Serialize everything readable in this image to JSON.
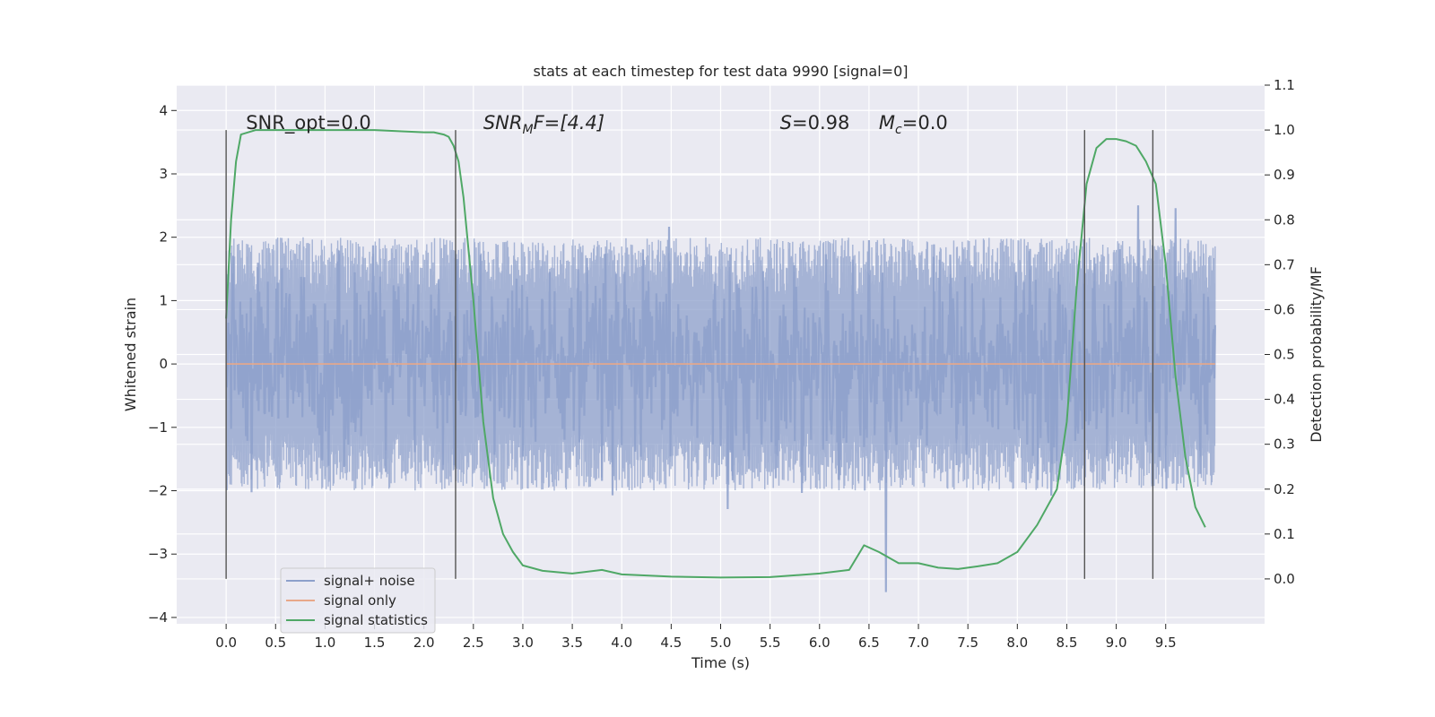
{
  "chart_data": {
    "type": "line",
    "title": "stats at each timestep for test data 9990 [signal=0]",
    "xlabel": "Time (s)",
    "ylabel": "Whitened strain",
    "y2label": "Detection probability/MF",
    "xlim": [
      -0.5,
      10.5
    ],
    "ylim": [
      -4.1,
      4.4
    ],
    "y2lim": [
      -0.1,
      1.1
    ],
    "x_ticks": [
      "0.0",
      "0.5",
      "1.0",
      "1.5",
      "2.0",
      "2.5",
      "3.0",
      "3.5",
      "4.0",
      "4.5",
      "5.0",
      "5.5",
      "6.0",
      "6.5",
      "7.0",
      "7.5",
      "8.0",
      "8.5",
      "9.0",
      "9.5"
    ],
    "y_ticks": [
      "−4",
      "−3",
      "−2",
      "−1",
      "0",
      "1",
      "2",
      "3",
      "4"
    ],
    "y2_ticks": [
      "0.0",
      "0.1",
      "0.2",
      "0.3",
      "0.4",
      "0.5",
      "0.6",
      "0.7",
      "0.8",
      "0.9",
      "1.0",
      "1.1"
    ],
    "grid": true,
    "legend_position": "lower-left",
    "annotations": {
      "snr_opt": "SNR_opt=0.0",
      "snr_mf_main": "SNR",
      "snr_mf_sub": "M",
      "snr_mf_rest": "F=[4.4]",
      "s_letter": "S",
      "s_rest": "=0.98",
      "mc_letter": "M",
      "mc_sub": "c",
      "mc_rest": "=0.0"
    },
    "vertical_markers": [
      0.0,
      2.32,
      8.68,
      9.37
    ],
    "series": [
      {
        "name": "signal+ noise",
        "color": "#8da0cb",
        "noise_std": 0.6,
        "x_range": [
          0.0,
          10.0
        ]
      },
      {
        "name": "signal only",
        "color": "#e8a889",
        "x": [
          0.0,
          10.0
        ],
        "y": [
          0.0,
          0.0
        ]
      },
      {
        "name": "signal statistics",
        "color": "#4fa866",
        "axis": "right",
        "x": [
          0.0,
          0.05,
          0.1,
          0.15,
          0.3,
          0.5,
          1.0,
          1.5,
          2.0,
          2.1,
          2.2,
          2.25,
          2.3,
          2.35,
          2.4,
          2.5,
          2.6,
          2.7,
          2.8,
          2.9,
          3.0,
          3.2,
          3.5,
          3.8,
          4.0,
          4.5,
          5.0,
          5.5,
          6.0,
          6.3,
          6.45,
          6.6,
          6.8,
          7.0,
          7.2,
          7.4,
          7.6,
          7.8,
          8.0,
          8.2,
          8.4,
          8.5,
          8.6,
          8.7,
          8.8,
          8.9,
          9.0,
          9.1,
          9.2,
          9.3,
          9.4,
          9.5,
          9.6,
          9.7,
          9.8,
          9.9
        ],
        "y": [
          0.58,
          0.8,
          0.93,
          0.99,
          1.0,
          1.0,
          1.0,
          1.0,
          0.995,
          0.995,
          0.99,
          0.985,
          0.965,
          0.93,
          0.85,
          0.62,
          0.35,
          0.18,
          0.1,
          0.06,
          0.03,
          0.018,
          0.012,
          0.02,
          0.01,
          0.005,
          0.003,
          0.004,
          0.012,
          0.02,
          0.075,
          0.06,
          0.035,
          0.035,
          0.025,
          0.022,
          0.028,
          0.035,
          0.06,
          0.12,
          0.2,
          0.35,
          0.65,
          0.88,
          0.96,
          0.98,
          0.98,
          0.975,
          0.965,
          0.93,
          0.88,
          0.7,
          0.45,
          0.27,
          0.16,
          0.115
        ]
      }
    ]
  }
}
